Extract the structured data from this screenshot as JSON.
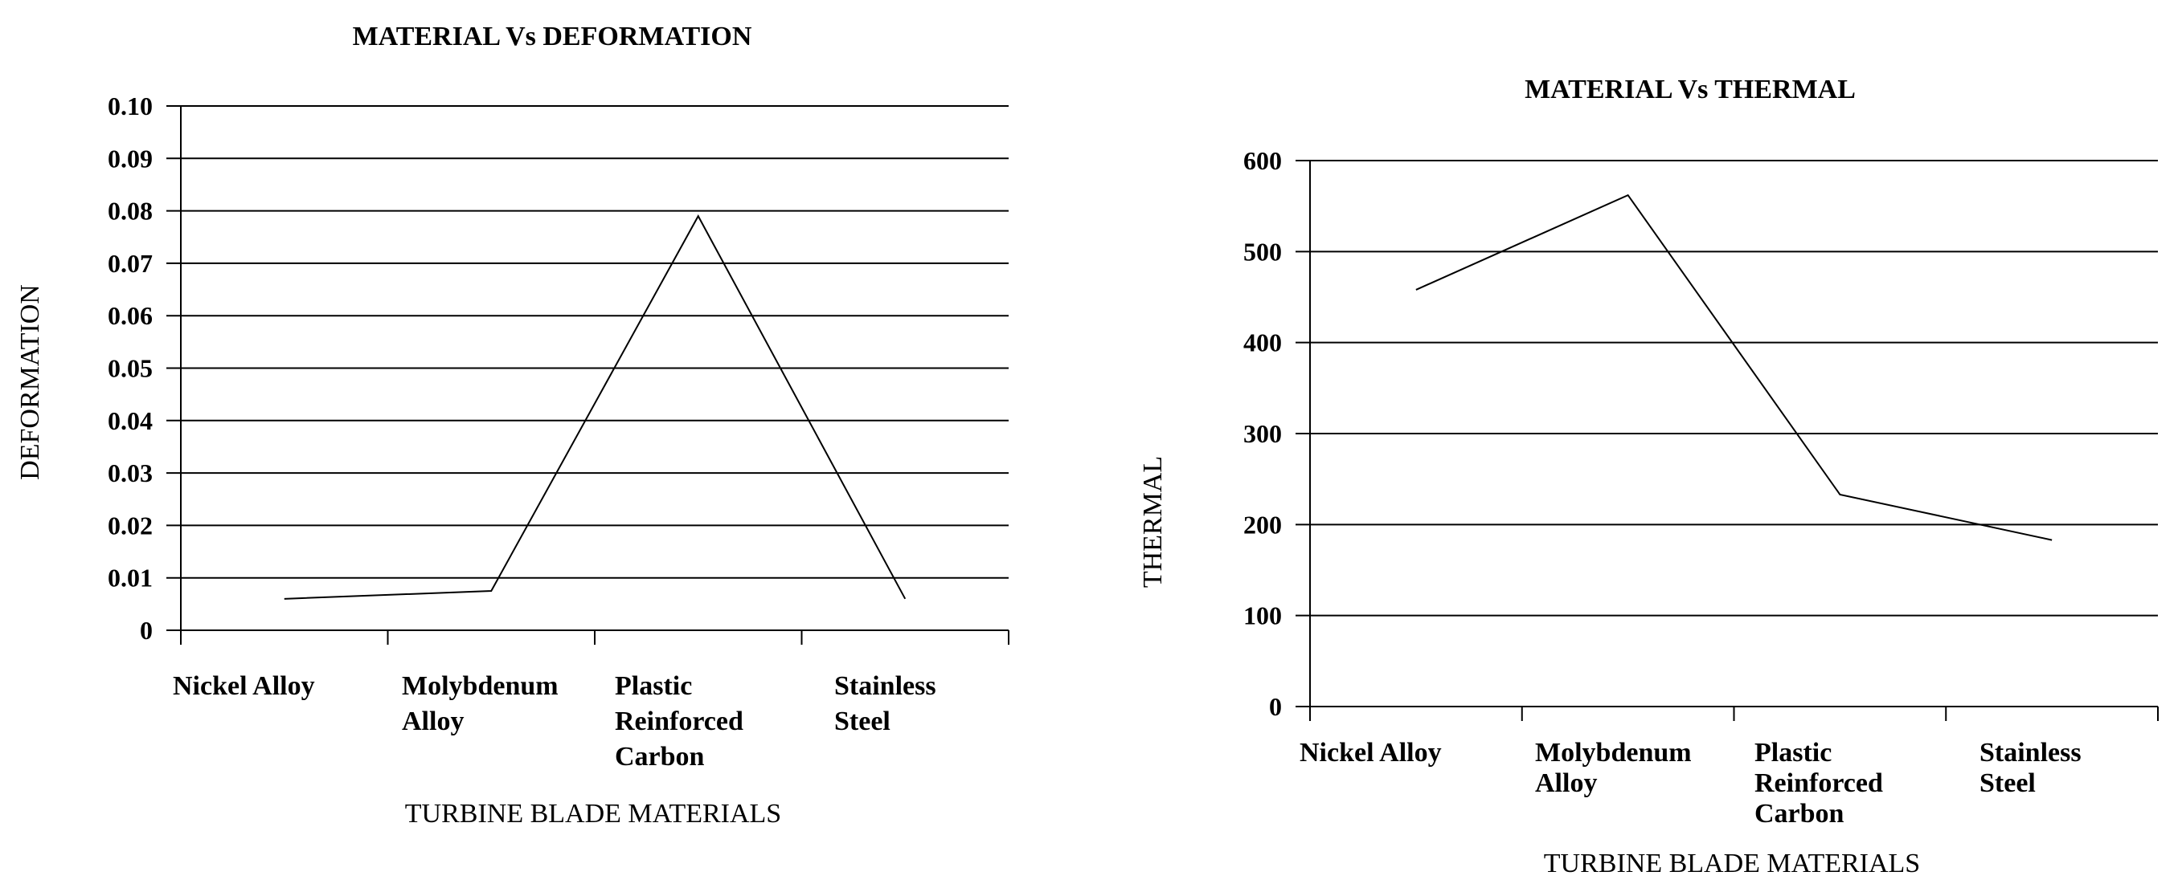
{
  "chart_data": [
    {
      "type": "line",
      "title": "MATERIAL  Vs DEFORMATION",
      "xlabel": "TURBINE BLADE MATERIALS",
      "ylabel": "DEFORMATION",
      "categories": [
        [
          "Nickel Alloy"
        ],
        [
          "Molybdenum",
          "Alloy"
        ],
        [
          "Plastic",
          "Reinforced",
          "Carbon"
        ],
        [
          "Stainless",
          "Steel"
        ]
      ],
      "ytick_labels": [
        "0",
        "0.01",
        "0.02",
        "0.03",
        "0.04",
        "0.05",
        "0.06",
        "0.07",
        "0.08",
        "0.09",
        "0.10"
      ],
      "ylim": [
        0,
        0.1
      ],
      "grid": true,
      "legend": "none",
      "series": [
        {
          "values": [
            0.006,
            0.0075,
            0.079,
            0.006
          ]
        }
      ]
    },
    {
      "type": "line",
      "title": "MATERIAL  Vs THERMAL",
      "xlabel": "TURBINE BLADE MATERIALS",
      "ylabel": "THERMAL",
      "categories": [
        [
          "Nickel Alloy"
        ],
        [
          "Molybdenum",
          "Alloy"
        ],
        [
          "Plastic",
          "Reinforced",
          "Carbon"
        ],
        [
          "Stainless",
          "Steel"
        ]
      ],
      "ytick_labels": [
        "0",
        "100",
        "200",
        "300",
        "400",
        "500",
        "600"
      ],
      "ylim": [
        0,
        600
      ],
      "grid": true,
      "legend": "none",
      "series": [
        {
          "values": [
            458,
            562,
            233,
            183
          ]
        }
      ]
    }
  ]
}
